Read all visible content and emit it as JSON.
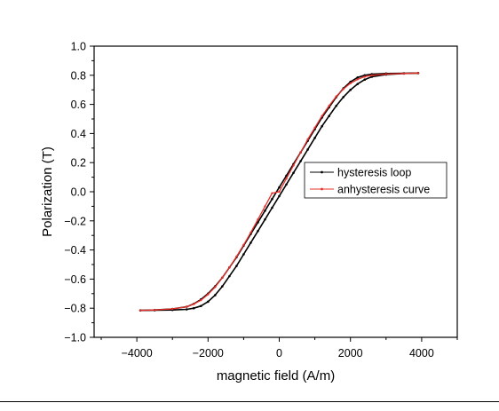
{
  "chart_data": {
    "type": "line",
    "title": "",
    "xlabel": "magnetic field (A/m)",
    "ylabel": "Polarization (T)",
    "xlim": [
      -5200,
      5000
    ],
    "ylim": [
      -1.0,
      1.0
    ],
    "x_ticks": [
      -4000,
      -2000,
      0,
      2000,
      4000
    ],
    "x_tick_labels": [
      "−4000",
      "−2000",
      "0",
      "2000",
      "4000"
    ],
    "y_ticks": [
      1.0,
      0.8,
      0.6,
      0.4,
      0.2,
      0.0,
      -0.2,
      -0.4,
      -0.6,
      -0.8,
      -1.0
    ],
    "y_tick_labels": [
      "1.0",
      "0.8",
      "0.6",
      "0.4",
      "0.2",
      "0.0",
      "−0.2",
      "−0.4",
      "−0.6",
      "−0.8",
      "−1.0"
    ],
    "grid": false,
    "legend_position": "center-right",
    "series": [
      {
        "name": "hysteresis loop",
        "color": "#000000",
        "branches": [
          {
            "x": [
              -3900,
              -3500,
              -3000,
              -2600,
              -2400,
              -2200,
              -2000,
              -1800,
              -1600,
              -1400,
              -1200,
              -1000,
              -800,
              -600,
              -400,
              -200,
              0,
              200,
              400,
              600,
              800,
              1000,
              1200,
              1400,
              1600,
              1800,
              2000,
              2200,
              2400,
              2600,
              3000,
              3500,
              3900
            ],
            "y": [
              -0.815,
              -0.812,
              -0.805,
              -0.79,
              -0.77,
              -0.74,
              -0.7,
              -0.65,
              -0.59,
              -0.52,
              -0.45,
              -0.37,
              -0.29,
              -0.21,
              -0.13,
              -0.05,
              0.03,
              0.11,
              0.19,
              0.27,
              0.35,
              0.43,
              0.51,
              0.58,
              0.65,
              0.71,
              0.755,
              0.785,
              0.8,
              0.808,
              0.812,
              0.814,
              0.815
            ]
          },
          {
            "x": [
              3900,
              3500,
              3000,
              2600,
              2400,
              2200,
              2000,
              1800,
              1600,
              1400,
              1200,
              1000,
              800,
              600,
              400,
              200,
              0,
              -200,
              -400,
              -600,
              -800,
              -1000,
              -1200,
              -1400,
              -1600,
              -1800,
              -2000,
              -2200,
              -2400,
              -2600,
              -3000,
              -3500,
              -3900
            ],
            "y": [
              0.815,
              0.812,
              0.805,
              0.79,
              0.77,
              0.74,
              0.7,
              0.65,
              0.59,
              0.52,
              0.45,
              0.37,
              0.29,
              0.21,
              0.13,
              0.05,
              -0.03,
              -0.11,
              -0.19,
              -0.27,
              -0.35,
              -0.43,
              -0.51,
              -0.58,
              -0.65,
              -0.71,
              -0.755,
              -0.785,
              -0.8,
              -0.808,
              -0.812,
              -0.814,
              -0.815
            ]
          }
        ]
      },
      {
        "name": "anhysteresis curve",
        "color": "#e8302a",
        "x": [
          -3900,
          -3500,
          -3000,
          -2600,
          -2400,
          -2200,
          -2000,
          -1800,
          -1600,
          -1400,
          -1200,
          -1000,
          -800,
          -600,
          -400,
          -200,
          0,
          200,
          400,
          600,
          800,
          1000,
          1200,
          1400,
          1600,
          1800,
          2000,
          2200,
          2400,
          2600,
          3000,
          3500,
          3900
        ],
        "y": [
          -0.815,
          -0.812,
          -0.805,
          -0.79,
          -0.772,
          -0.745,
          -0.705,
          -0.655,
          -0.59,
          -0.52,
          -0.445,
          -0.365,
          -0.28,
          -0.19,
          -0.1,
          -0.01,
          0.0,
          0.09,
          0.18,
          0.27,
          0.36,
          0.44,
          0.52,
          0.59,
          0.655,
          0.705,
          0.745,
          0.772,
          0.79,
          0.8,
          0.808,
          0.812,
          0.815
        ]
      }
    ]
  }
}
